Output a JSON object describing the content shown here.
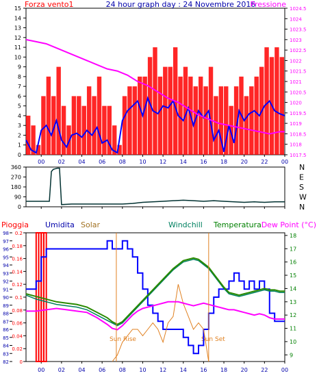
{
  "header": {
    "left_label": "Forza vento1",
    "title": "24 hour graph day : 24 Novembre 2016",
    "right_label": "Pressione"
  },
  "colors": {
    "wind_bars": "#ff0000",
    "wind_line": "#0000ff",
    "pressure": "#ff00ff",
    "direction": "#003030",
    "rain": "#ff0000",
    "humidity": "#0000ff",
    "solar": "#e08020",
    "windchill": "#008060",
    "temperature": "#2a8a00",
    "dewpoint": "#ff00ff",
    "axis_blue": "#0000aa",
    "axis_red": "#ff0000",
    "axis_green": "#008000"
  },
  "bottom_header": {
    "rain": "Pioggia",
    "humidity": "Umidita",
    "solar": "Solar",
    "windchill": "Windchill",
    "temperature": "Temperatura",
    "dewpoint": "Dew Point (°C)"
  },
  "annotations": {
    "sunrise": "Sun Rise",
    "sunset": "Sun Set"
  },
  "x_ticks": [
    "00",
    "02",
    "04",
    "06",
    "08",
    "10",
    "12",
    "14",
    "16",
    "18",
    "20",
    "22",
    "00"
  ],
  "direction_letters": [
    "N",
    "W",
    "S",
    "E",
    "N"
  ],
  "chart_data": [
    {
      "type": "bar",
      "name": "wind",
      "x_range": [
        -1.5,
        24
      ],
      "left_axis": {
        "ticks": [
          0,
          1,
          2,
          3,
          4,
          5,
          6,
          7,
          8,
          9,
          10,
          11,
          12,
          13,
          14,
          15
        ],
        "range": [
          0,
          15
        ]
      },
      "right_axis": {
        "ticks": [
          "1017.5",
          "1018",
          "1018.5",
          "1019",
          "1019.5",
          "1020",
          "1020.5",
          "1021",
          "1021.5",
          "1022",
          "1022.5",
          "1023",
          "1023.5",
          "1024",
          "1024.5"
        ],
        "range": [
          1017.5,
          1024.5
        ]
      },
      "series": [
        {
          "name": "Forza vento1",
          "type": "bar",
          "x": [
            -1.5,
            -1.0,
            -0.5,
            0.0,
            0.5,
            1.0,
            1.5,
            2.0,
            2.5,
            3.0,
            3.5,
            4.0,
            4.5,
            5.0,
            5.5,
            6.0,
            6.5,
            7.0,
            7.5,
            8.0,
            8.5,
            9.0,
            9.5,
            10.0,
            10.5,
            11.0,
            11.5,
            12.0,
            12.5,
            13.0,
            13.5,
            14.0,
            14.5,
            15.0,
            15.5,
            16.0,
            16.5,
            17.0,
            17.5,
            18.0,
            18.5,
            19.0,
            19.5,
            20.0,
            20.5,
            21.0,
            21.5,
            22.0,
            22.5,
            23.0,
            23.5
          ],
          "values": [
            4,
            3,
            1,
            6,
            8,
            6,
            9,
            5,
            3,
            6,
            6,
            5,
            7,
            6,
            8,
            5,
            5,
            3,
            1,
            6,
            7,
            7,
            8,
            8,
            10,
            11,
            8,
            9,
            9,
            11,
            8,
            9,
            8,
            7,
            8,
            7,
            9,
            6,
            7,
            7,
            5,
            7,
            8,
            6,
            7,
            8,
            9,
            11,
            10,
            11,
            10
          ]
        },
        {
          "name": "Wind average",
          "type": "line",
          "x": [
            -1.5,
            -1.0,
            -0.5,
            0.0,
            0.5,
            1.0,
            1.5,
            2.0,
            2.5,
            3.0,
            3.5,
            4.0,
            4.5,
            5.0,
            5.5,
            6.0,
            6.5,
            7.0,
            7.5,
            8.0,
            8.5,
            9.0,
            9.5,
            10.0,
            10.5,
            11.0,
            11.5,
            12.0,
            12.5,
            13.0,
            13.5,
            14.0,
            14.5,
            15.0,
            15.5,
            16.0,
            16.5,
            17.0,
            17.5,
            18.0,
            18.5,
            19.0,
            19.5,
            20.0,
            20.5,
            21.0,
            21.5,
            22.0,
            22.5,
            23.0,
            23.5,
            24.0
          ],
          "values": [
            1.5,
            0.5,
            0.2,
            2.5,
            3.0,
            2.0,
            3.5,
            1.5,
            0.8,
            2.0,
            2.2,
            1.8,
            2.5,
            2.0,
            2.8,
            1.2,
            1.5,
            0.5,
            0.2,
            3.5,
            4.5,
            5.0,
            5.5,
            4.0,
            5.8,
            4.5,
            4.2,
            5.0,
            4.8,
            5.5,
            4.0,
            3.5,
            4.8,
            3.0,
            4.5,
            3.8,
            4.5,
            1.5,
            2.5,
            0.3,
            3.0,
            1.2,
            4.5,
            3.5,
            4.2,
            4.5,
            4.0,
            5.0,
            5.5,
            4.5,
            4.2,
            4.0
          ]
        },
        {
          "name": "Pressione",
          "type": "line",
          "axis": "right",
          "x": [
            -1.5,
            -0.5,
            0.5,
            1.5,
            2.5,
            3.5,
            4.5,
            5.5,
            6.5,
            7.5,
            8.5,
            9.5,
            10.5,
            11.5,
            12.5,
            13.5,
            14.5,
            15.5,
            16.5,
            17.5,
            18.5,
            19.5,
            20.5,
            21.5,
            22.5,
            23.5,
            24.0
          ],
          "values": [
            1023.0,
            1022.9,
            1022.8,
            1022.6,
            1022.4,
            1022.2,
            1022.0,
            1021.8,
            1021.6,
            1021.5,
            1021.3,
            1021.0,
            1020.8,
            1020.5,
            1020.2,
            1020.0,
            1019.7,
            1019.4,
            1019.2,
            1019.0,
            1018.9,
            1018.8,
            1018.7,
            1018.6,
            1018.5,
            1018.6,
            1018.6
          ]
        }
      ]
    },
    {
      "type": "line",
      "name": "wind_direction",
      "x_range": [
        -1.5,
        24
      ],
      "left_axis": {
        "ticks": [
          0,
          90,
          180,
          270,
          360
        ],
        "range": [
          0,
          360
        ]
      },
      "series": [
        {
          "name": "Direzione",
          "x": [
            -1.5,
            0.0,
            0.8,
            1.0,
            1.2,
            1.4,
            1.6,
            1.8,
            2.0,
            3.0,
            4.0,
            6.0,
            8.0,
            9.0,
            10.0,
            11.0,
            12.0,
            13.0,
            14.0,
            15.0,
            16.0,
            17.0,
            18.0,
            19.0,
            20.0,
            21.0,
            22.0,
            23.0,
            24.0
          ],
          "values": [
            50,
            50,
            50,
            320,
            340,
            345,
            350,
            350,
            20,
            25,
            25,
            25,
            25,
            30,
            40,
            45,
            50,
            55,
            60,
            55,
            50,
            55,
            50,
            45,
            40,
            45,
            40,
            45,
            45
          ]
        }
      ]
    },
    {
      "type": "line",
      "name": "humidity_temperature",
      "x_range": [
        -1.5,
        24
      ],
      "left_axis": {
        "title": "Umidita",
        "ticks": [
          82,
          83,
          84,
          85,
          86,
          87,
          88,
          89,
          90,
          91,
          92,
          93,
          94,
          95,
          96,
          97,
          98
        ],
        "range": [
          82,
          98
        ]
      },
      "rain_axis": {
        "title": "Pioggia",
        "ticks": [
          "0",
          "0.02",
          "0.04",
          "0.06",
          "0.08",
          "0.1",
          "0.12",
          "0.14",
          "0.16",
          "0.18",
          "0.2"
        ],
        "range": [
          0,
          0.2
        ]
      },
      "right_axis": {
        "ticks": [
          9,
          10,
          11,
          12,
          13,
          14,
          15,
          16,
          17,
          18
        ],
        "range": [
          8.5,
          18.2
        ]
      },
      "series": [
        {
          "name": "Pioggia",
          "type": "bar",
          "x": [
            -0.5,
            -0.25,
            0.0,
            0.25
          ],
          "values": [
            0.2,
            0.2,
            0.2,
            0.2
          ]
        },
        {
          "name": "Umidita",
          "x": [
            -1.5,
            -1.0,
            -0.5,
            0.0,
            0.5,
            1.0,
            2.0,
            3.0,
            4.0,
            5.0,
            6.0,
            6.5,
            7.0,
            7.5,
            8.0,
            8.5,
            9.0,
            9.5,
            10.0,
            10.5,
            11.0,
            11.5,
            12.0,
            12.5,
            13.0,
            13.5,
            14.0,
            14.5,
            15.0,
            15.5,
            16.0,
            16.5,
            17.0,
            17.5,
            18.0,
            18.5,
            19.0,
            19.5,
            20.0,
            20.5,
            21.0,
            21.5,
            22.0,
            22.5,
            23.0,
            24.0
          ],
          "values": [
            91,
            91,
            92,
            95,
            96,
            96,
            96,
            96,
            96,
            96,
            96,
            97,
            96,
            96,
            97,
            96,
            95,
            93,
            91,
            89,
            88,
            87,
            86,
            86,
            86,
            86,
            85,
            84,
            83,
            84,
            86,
            88,
            90,
            91,
            91,
            92,
            93,
            92,
            91,
            92,
            91,
            92,
            91,
            88,
            87,
            87
          ]
        },
        {
          "name": "Solar",
          "x": [
            7.0,
            7.5,
            8.0,
            8.5,
            9.0,
            9.5,
            10.0,
            10.5,
            11.0,
            11.5,
            12.0,
            12.5,
            13.0,
            13.5,
            14.0,
            14.5,
            15.0,
            15.5,
            16.0,
            16.5
          ],
          "values": [
            0.0,
            0.01,
            0.03,
            0.04,
            0.05,
            0.05,
            0.04,
            0.05,
            0.06,
            0.05,
            0.03,
            0.06,
            0.07,
            0.12,
            0.09,
            0.07,
            0.05,
            0.06,
            0.05,
            0.0
          ]
        },
        {
          "name": "Windchill",
          "axis": "right",
          "x": [
            -1.5,
            -0.5,
            0.5,
            1.5,
            2.5,
            3.5,
            4.5,
            5.5,
            6.5,
            7.0,
            7.5,
            8.0,
            8.5,
            9.0,
            9.5,
            10.0,
            10.5,
            11.0,
            11.5,
            12.0,
            12.5,
            13.0,
            13.5,
            14.0,
            14.5,
            15.0,
            15.5,
            16.0,
            16.5,
            17.0,
            17.5,
            18.0,
            18.5,
            19.0,
            19.5,
            20.0,
            20.5,
            21.0,
            21.5,
            22.0,
            22.5,
            23.0,
            23.5,
            24.0
          ],
          "values": [
            13.5,
            13.2,
            13.0,
            12.8,
            12.7,
            12.6,
            12.4,
            12.0,
            11.6,
            11.4,
            11.2,
            11.4,
            11.8,
            12.2,
            12.6,
            13.0,
            13.4,
            13.8,
            14.2,
            14.6,
            15.0,
            15.4,
            15.7,
            16.0,
            16.1,
            16.2,
            16.1,
            15.8,
            15.5,
            15.0,
            14.5,
            14.0,
            13.6,
            13.5,
            13.4,
            13.5,
            13.6,
            13.7,
            13.8,
            13.9,
            13.8,
            13.8,
            13.7,
            13.7
          ]
        },
        {
          "name": "Temperatura",
          "axis": "right",
          "x": [
            -1.5,
            -0.5,
            0.5,
            1.5,
            2.5,
            3.5,
            4.5,
            5.5,
            6.5,
            7.0,
            7.5,
            8.0,
            8.5,
            9.0,
            9.5,
            10.0,
            10.5,
            11.0,
            11.5,
            12.0,
            12.5,
            13.0,
            13.5,
            14.0,
            14.5,
            15.0,
            15.5,
            16.0,
            16.5,
            17.0,
            17.5,
            18.0,
            18.5,
            19.0,
            19.5,
            20.0,
            20.5,
            21.0,
            21.5,
            22.0,
            22.5,
            23.0,
            23.5,
            24.0
          ],
          "values": [
            13.6,
            13.4,
            13.2,
            13.0,
            12.9,
            12.8,
            12.6,
            12.2,
            11.8,
            11.5,
            11.3,
            11.5,
            11.9,
            12.3,
            12.7,
            13.1,
            13.5,
            13.9,
            14.3,
            14.7,
            15.1,
            15.5,
            15.8,
            16.1,
            16.2,
            16.3,
            16.2,
            15.9,
            15.6,
            15.1,
            14.6,
            14.1,
            13.7,
            13.6,
            13.5,
            13.6,
            13.7,
            13.8,
            13.9,
            14.0,
            13.9,
            13.9,
            13.8,
            13.8
          ]
        },
        {
          "name": "Dew Point",
          "axis": "right",
          "x": [
            -1.5,
            -0.5,
            0.5,
            1.5,
            2.5,
            3.5,
            4.5,
            5.5,
            6.5,
            7.0,
            7.5,
            8.0,
            8.5,
            9.0,
            9.5,
            10.0,
            10.5,
            11.0,
            11.5,
            12.0,
            12.5,
            13.0,
            13.5,
            14.0,
            14.5,
            15.0,
            15.5,
            16.0,
            16.5,
            17.0,
            17.5,
            18.0,
            18.5,
            19.0,
            19.5,
            20.0,
            20.5,
            21.0,
            21.5,
            22.0,
            22.5,
            23.0,
            24.0
          ],
          "values": [
            12.3,
            12.3,
            12.4,
            12.5,
            12.4,
            12.3,
            12.2,
            11.8,
            11.3,
            11.0,
            10.9,
            11.2,
            11.6,
            12.0,
            12.3,
            12.5,
            12.6,
            12.7,
            12.8,
            12.9,
            13.0,
            13.0,
            13.0,
            12.9,
            12.8,
            12.7,
            12.8,
            12.9,
            12.8,
            12.7,
            12.6,
            12.5,
            12.4,
            12.4,
            12.3,
            12.2,
            12.1,
            12.0,
            12.1,
            12.0,
            11.8,
            11.7,
            11.7
          ]
        }
      ]
    }
  ]
}
